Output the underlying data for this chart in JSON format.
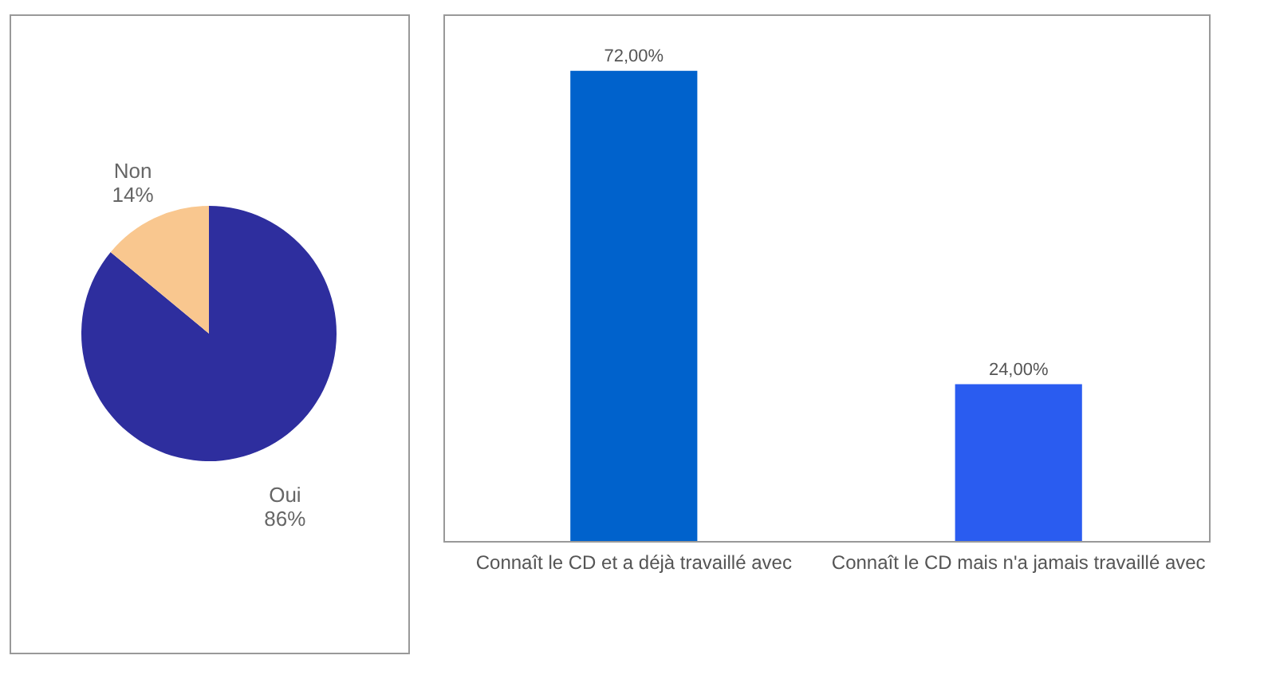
{
  "chart_data": [
    {
      "type": "pie",
      "categories": [
        "Oui",
        "Non"
      ],
      "values": [
        86,
        14
      ],
      "colors": [
        "#2e2e9e",
        "#f9c78f"
      ],
      "value_labels": [
        "86%",
        "14%"
      ]
    },
    {
      "type": "bar",
      "categories": [
        "Connaît le CD et a déjà travaillé avec",
        "Connaît le CD mais n'a jamais travaillé avec"
      ],
      "values": [
        72,
        24
      ],
      "colors": [
        "#0062cc",
        "#2a5cf0"
      ],
      "value_labels": [
        "72,00%",
        "24,00%"
      ]
    }
  ]
}
